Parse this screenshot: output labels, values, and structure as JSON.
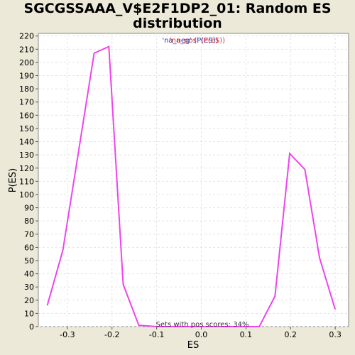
{
  "chart_data": {
    "type": "line",
    "title_line1": "SGCGSSAAA_V$E2F1DP2_01: Random ES",
    "title_line2": "distribution",
    "xlabel": "ES",
    "ylabel": "P(ES)",
    "xlim": [
      -0.365,
      0.33
    ],
    "ylim": [
      0,
      222
    ],
    "x_ticks": [
      -0.3,
      -0.2,
      -0.1,
      0.0,
      0.1,
      0.2,
      0.3
    ],
    "x_tick_labels": [
      "-0.3",
      "-0.2",
      "-0.1",
      "0.0",
      "0.1",
      "0.2",
      "0.3"
    ],
    "y_ticks": [
      0,
      10,
      20,
      30,
      40,
      50,
      60,
      70,
      80,
      90,
      100,
      110,
      120,
      130,
      140,
      150,
      160,
      170,
      180,
      190,
      200,
      210,
      220
    ],
    "grid": true,
    "line_color": "#ee44ee",
    "legend": {
      "entries": [
        {
          "label": "'na_neg' (P(ES))",
          "color": "#3333aa"
        },
        {
          "label": "'na_pos' (P(ES))",
          "color": "#dd3333"
        }
      ],
      "placement": "top-center"
    },
    "annotation": "Sets with pos scores: 34%",
    "series": [
      {
        "x": [
          -0.345,
          -0.31,
          -0.24,
          -0.207,
          -0.175,
          -0.14,
          -0.1,
          0.0,
          0.13,
          0.165,
          0.198,
          0.232,
          0.265,
          0.3
        ],
        "y": [
          16,
          58,
          207,
          212,
          32,
          1,
          0,
          0,
          0,
          23,
          131,
          119,
          52,
          13
        ]
      }
    ]
  }
}
